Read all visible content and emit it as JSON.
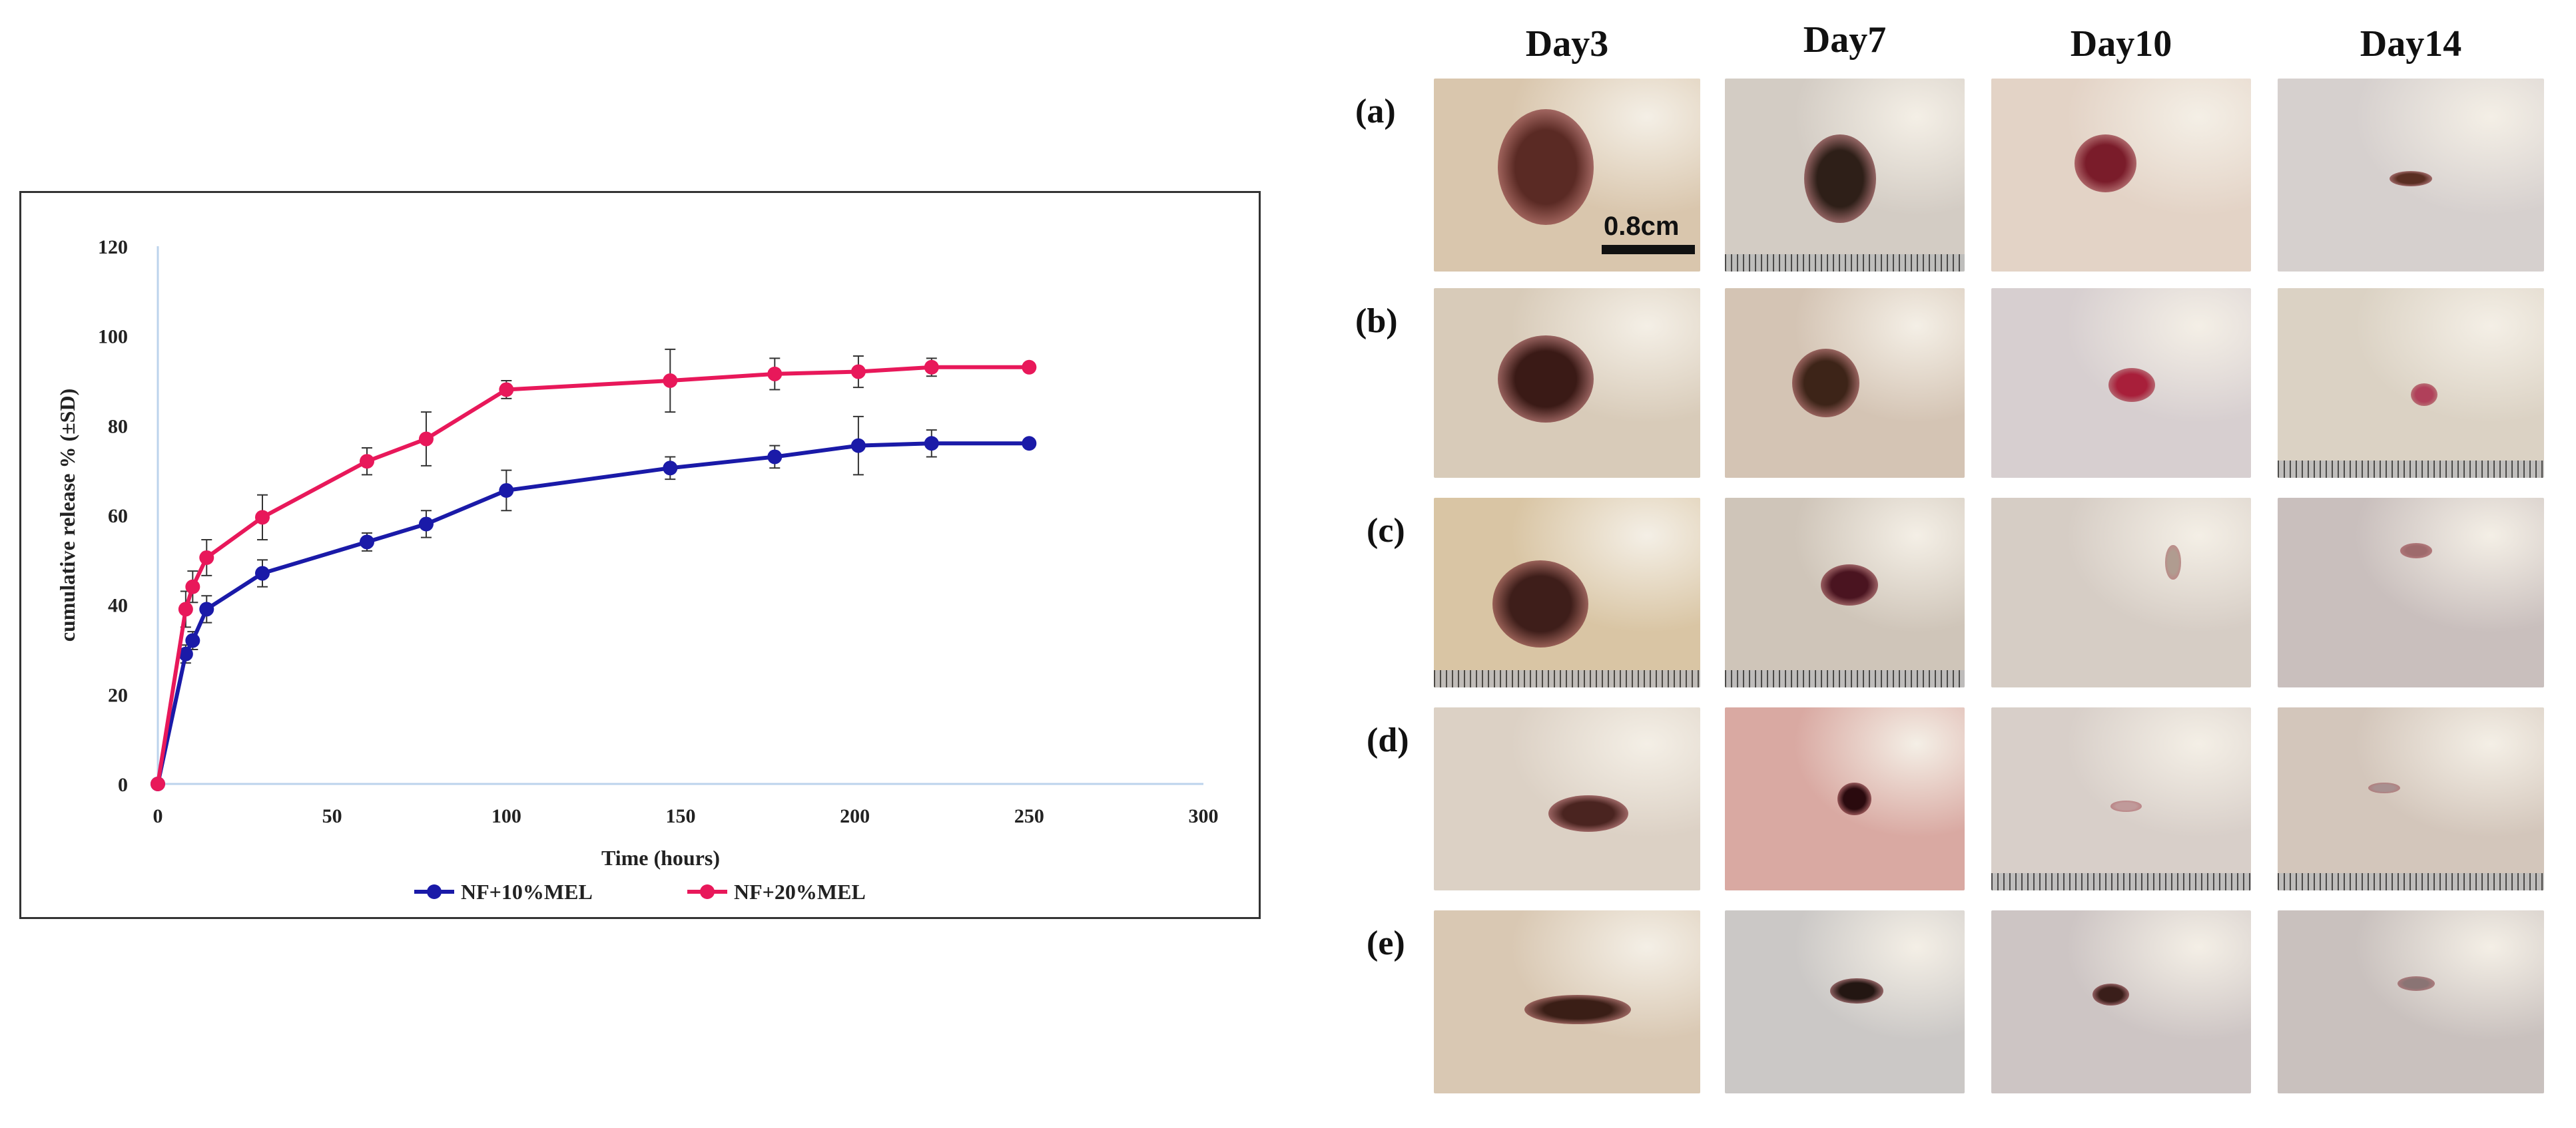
{
  "chart_data": {
    "type": "line",
    "xlabel": "Time (hours)",
    "ylabel": "cumulative release % (±SD)",
    "xlim": [
      0,
      300
    ],
    "ylim": [
      0,
      120
    ],
    "xticks": [
      0,
      50,
      100,
      150,
      200,
      250,
      300
    ],
    "yticks": [
      0,
      20,
      40,
      60,
      80,
      100,
      120
    ],
    "legend_position": "bottom",
    "series": [
      {
        "name": "NF+10%MEL",
        "color": "#1a1aa8",
        "x": [
          0,
          8,
          10,
          14,
          30,
          60,
          77,
          100,
          147,
          177,
          201,
          222,
          250
        ],
        "y": [
          0,
          29,
          32,
          39,
          47,
          54,
          58,
          65.5,
          70.5,
          73,
          75.5,
          76,
          76
        ],
        "err": [
          0,
          2,
          2,
          3,
          3,
          2,
          3,
          4.5,
          2.5,
          2.5,
          6.5,
          3,
          0
        ]
      },
      {
        "name": "NF+20%MEL",
        "color": "#e8185a",
        "x": [
          0,
          8,
          10,
          14,
          30,
          60,
          77,
          100,
          147,
          177,
          201,
          222,
          250
        ],
        "y": [
          0,
          39,
          44,
          50.5,
          59.5,
          72,
          77,
          88,
          90,
          91.5,
          92,
          93,
          93
        ],
        "err": [
          0,
          4,
          3.5,
          4,
          5,
          3,
          6,
          2,
          7,
          3.5,
          3.5,
          2,
          0
        ]
      }
    ]
  },
  "figure_panel": {
    "columns": [
      "Day3",
      "Day7",
      "Day10",
      "Day14"
    ],
    "rows": [
      "(a)",
      "(b)",
      "(c)",
      "(d)",
      "(e)"
    ],
    "scale_bar_label": "0.8cm"
  }
}
